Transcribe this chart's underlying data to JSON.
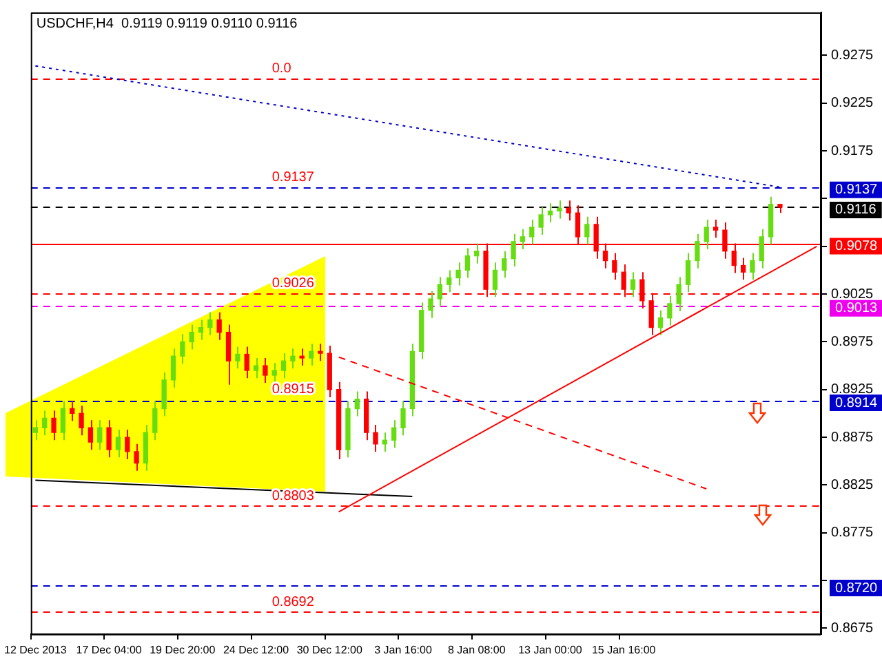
{
  "chart_data": {
    "type": "candlestick",
    "title": "USDCHF,H4  0.9119 0.9119 0.9110 0.9116",
    "categories": [
      "12 Dec 2013",
      null,
      null,
      null,
      null,
      null,
      null,
      null,
      "17 Dec 04:00",
      null,
      null,
      null,
      null,
      null,
      null,
      null,
      "19 Dec 20:00",
      null,
      null,
      null,
      null,
      null,
      null,
      null,
      "24 Dec 12:00",
      null,
      null,
      null,
      null,
      null,
      null,
      null,
      "30 Dec 12:00",
      null,
      null,
      null,
      null,
      null,
      null,
      null,
      "3 Jan 16:00",
      null,
      null,
      null,
      null,
      null,
      null,
      null,
      "8 Jan 08:00",
      null,
      null,
      null,
      null,
      null,
      null,
      null,
      "13 Jan 00:00",
      null,
      null,
      null,
      null,
      null,
      null,
      null,
      "15 Jan 16:00",
      null,
      null,
      null,
      null,
      null,
      null,
      null,
      null,
      null,
      null,
      null,
      null,
      null,
      null,
      null,
      null,
      null,
      null,
      null,
      null,
      null
    ],
    "ohlc": [
      [
        0.888,
        0.8893,
        0.8872,
        0.8885
      ],
      [
        0.8885,
        0.8903,
        0.8877,
        0.8895
      ],
      [
        0.8895,
        0.8903,
        0.8872,
        0.888
      ],
      [
        0.888,
        0.8913,
        0.8872,
        0.8905
      ],
      [
        0.8905,
        0.8913,
        0.8892,
        0.89
      ],
      [
        0.89,
        0.8908,
        0.8877,
        0.8885
      ],
      [
        0.8885,
        0.8893,
        0.8862,
        0.887
      ],
      [
        0.887,
        0.8893,
        0.8862,
        0.8885
      ],
      [
        0.8885,
        0.8893,
        0.8854,
        0.8862
      ],
      [
        0.8862,
        0.8883,
        0.8854,
        0.8875
      ],
      [
        0.8875,
        0.8883,
        0.8852,
        0.886
      ],
      [
        0.886,
        0.8868,
        0.884,
        0.8848
      ],
      [
        0.8848,
        0.8888,
        0.884,
        0.888
      ],
      [
        0.888,
        0.8913,
        0.8872,
        0.8905
      ],
      [
        0.8905,
        0.8943,
        0.8897,
        0.8935
      ],
      [
        0.8935,
        0.8968,
        0.8927,
        0.896
      ],
      [
        0.896,
        0.8983,
        0.8952,
        0.8975
      ],
      [
        0.8975,
        0.8993,
        0.8967,
        0.8985
      ],
      [
        0.8985,
        0.8998,
        0.8977,
        0.899
      ],
      [
        0.899,
        0.9006,
        0.8982,
        0.8998
      ],
      [
        0.8998,
        0.9006,
        0.8977,
        0.8985
      ],
      [
        0.8985,
        0.8993,
        0.893,
        0.8955
      ],
      [
        0.8955,
        0.897,
        0.8947,
        0.8962
      ],
      [
        0.8962,
        0.897,
        0.8937,
        0.8945
      ],
      [
        0.8945,
        0.8958,
        0.8937,
        0.895
      ],
      [
        0.895,
        0.8958,
        0.8932,
        0.894
      ],
      [
        0.894,
        0.8953,
        0.8932,
        0.8945
      ],
      [
        0.8945,
        0.8963,
        0.8937,
        0.8955
      ],
      [
        0.8955,
        0.8968,
        0.8947,
        0.896
      ],
      [
        0.896,
        0.8968,
        0.895,
        0.8958
      ],
      [
        0.8958,
        0.8973,
        0.895,
        0.8965
      ],
      [
        0.8965,
        0.8973,
        0.8955,
        0.8963
      ],
      [
        0.8963,
        0.8971,
        0.8917,
        0.8925
      ],
      [
        0.8925,
        0.8933,
        0.8852,
        0.8862
      ],
      [
        0.8862,
        0.8913,
        0.8854,
        0.8905
      ],
      [
        0.8905,
        0.8923,
        0.8897,
        0.8915
      ],
      [
        0.8915,
        0.8923,
        0.8872,
        0.888
      ],
      [
        0.888,
        0.8888,
        0.886,
        0.8868
      ],
      [
        0.8868,
        0.888,
        0.886,
        0.8872
      ],
      [
        0.8872,
        0.8893,
        0.8864,
        0.8885
      ],
      [
        0.8885,
        0.8913,
        0.8877,
        0.8905
      ],
      [
        0.8905,
        0.8973,
        0.8897,
        0.8965
      ],
      [
        0.8965,
        0.9016,
        0.8957,
        0.9008
      ],
      [
        0.9008,
        0.9028,
        0.9,
        0.902
      ],
      [
        0.902,
        0.9043,
        0.9012,
        0.9035
      ],
      [
        0.9035,
        0.905,
        0.9027,
        0.9042
      ],
      [
        0.9042,
        0.9058,
        0.9034,
        0.905
      ],
      [
        0.905,
        0.9073,
        0.9042,
        0.9065
      ],
      [
        0.9065,
        0.9078,
        0.9057,
        0.907
      ],
      [
        0.907,
        0.9078,
        0.9022,
        0.903
      ],
      [
        0.903,
        0.9058,
        0.9022,
        0.905
      ],
      [
        0.905,
        0.907,
        0.9042,
        0.9062
      ],
      [
        0.9062,
        0.9088,
        0.9054,
        0.908
      ],
      [
        0.908,
        0.9093,
        0.9072,
        0.9085
      ],
      [
        0.9085,
        0.9103,
        0.9077,
        0.9095
      ],
      [
        0.9095,
        0.9116,
        0.9087,
        0.9108
      ],
      [
        0.9108,
        0.912,
        0.91,
        0.9112
      ],
      [
        0.9112,
        0.9123,
        0.9104,
        0.9115
      ],
      [
        0.9115,
        0.9123,
        0.9102,
        0.911
      ],
      [
        0.911,
        0.9118,
        0.9077,
        0.9085
      ],
      [
        0.9085,
        0.9106,
        0.9077,
        0.9098
      ],
      [
        0.9098,
        0.9106,
        0.9062,
        0.907
      ],
      [
        0.907,
        0.9078,
        0.9052,
        0.906
      ],
      [
        0.906,
        0.9068,
        0.904,
        0.9048
      ],
      [
        0.9048,
        0.9056,
        0.9022,
        0.903
      ],
      [
        0.903,
        0.9048,
        0.9022,
        0.904
      ],
      [
        0.904,
        0.9048,
        0.901,
        0.9018
      ],
      [
        0.9018,
        0.9026,
        0.8982,
        0.899
      ],
      [
        0.899,
        0.9008,
        0.8982,
        0.9
      ],
      [
        0.9,
        0.9023,
        0.8992,
        0.9015
      ],
      [
        0.9015,
        0.9043,
        0.9007,
        0.9035
      ],
      [
        0.9035,
        0.9068,
        0.9027,
        0.906
      ],
      [
        0.906,
        0.9088,
        0.9052,
        0.908
      ],
      [
        0.908,
        0.9103,
        0.9072,
        0.9095
      ],
      [
        0.9095,
        0.9103,
        0.9084,
        0.9092
      ],
      [
        0.9092,
        0.91,
        0.9062,
        0.907
      ],
      [
        0.907,
        0.9078,
        0.9047,
        0.9055
      ],
      [
        0.9055,
        0.9063,
        0.904,
        0.9048
      ],
      [
        0.9048,
        0.9068,
        0.904,
        0.906
      ],
      [
        0.906,
        0.9093,
        0.9052,
        0.9085
      ],
      [
        0.9085,
        0.9127,
        0.9077,
        0.9119
      ],
      [
        0.9119,
        0.9119,
        0.911,
        0.9116
      ],
      null,
      null,
      null,
      null
    ],
    "colors": [
      "#66dd11",
      "#66dd11",
      "#ff0000",
      "#66dd11",
      "#ff0000",
      "#ff0000",
      "#ff0000",
      "#66dd11",
      "#ff0000",
      "#66dd11",
      "#ff0000",
      "#ff0000",
      "#66dd11",
      "#66dd11",
      "#66dd11",
      "#66dd11",
      "#66dd11",
      "#66dd11",
      "#66dd11",
      "#66dd11",
      "#ff0000",
      "#ff0000",
      "#66dd11",
      "#ff0000",
      "#66dd11",
      "#ff0000",
      "#66dd11",
      "#66dd11",
      "#66dd11",
      "#ff0000",
      "#66dd11",
      "#ff0000",
      "#ff0000",
      "#ff0000",
      "#66dd11",
      "#66dd11",
      "#ff0000",
      "#ff0000",
      "#66dd11",
      "#66dd11",
      "#66dd11",
      "#66dd11",
      "#66dd11",
      "#66dd11",
      "#66dd11",
      "#66dd11",
      "#66dd11",
      "#66dd11",
      "#66dd11",
      "#ff0000",
      "#66dd11",
      "#66dd11",
      "#66dd11",
      "#66dd11",
      "#66dd11",
      "#66dd11",
      "#66dd11",
      "#66dd11",
      "#ff0000",
      "#ff0000",
      "#66dd11",
      "#ff0000",
      "#ff0000",
      "#ff0000",
      "#ff0000",
      "#66dd11",
      "#ff0000",
      "#ff0000",
      "#66dd11",
      "#66dd11",
      "#66dd11",
      "#66dd11",
      "#66dd11",
      "#66dd11",
      "#ff0000",
      "#ff0000",
      "#ff0000",
      "#ff0000",
      "#66dd11",
      "#66dd11",
      "#66dd11",
      "#ff0000",
      null,
      null,
      null,
      null
    ],
    "series": [
      {
        "type": "line",
        "color": "#ff0000",
        "line_style": "solid",
        "values": [
          null,
          null,
          null,
          null,
          null,
          null,
          null,
          null,
          null,
          null,
          null,
          null,
          null,
          null,
          null,
          null,
          null,
          null,
          null,
          null,
          null,
          null,
          null,
          null,
          null,
          null,
          null,
          null,
          null,
          null,
          null,
          null,
          null,
          0.8797,
          null,
          null,
          null,
          null,
          null,
          null,
          null,
          null,
          null,
          null,
          null,
          null,
          null,
          null,
          null,
          null,
          null,
          null,
          null,
          null,
          null,
          null,
          null,
          null,
          null,
          null,
          null,
          null,
          null,
          null,
          null,
          null,
          null,
          null,
          null,
          null,
          null,
          null,
          null,
          null,
          null,
          null,
          null,
          null,
          null,
          null,
          null,
          null,
          null,
          null,
          null,
          0.9075
        ]
      },
      {
        "type": "line",
        "color": "#0000cc",
        "line_style": "dotted",
        "values": [
          0.9264,
          null,
          null,
          null,
          null,
          null,
          null,
          null,
          null,
          null,
          null,
          null,
          null,
          null,
          null,
          null,
          null,
          null,
          null,
          null,
          null,
          null,
          null,
          null,
          null,
          null,
          null,
          null,
          null,
          null,
          null,
          null,
          null,
          null,
          null,
          null,
          null,
          null,
          null,
          null,
          null,
          null,
          null,
          null,
          null,
          null,
          null,
          null,
          null,
          null,
          null,
          null,
          null,
          null,
          null,
          null,
          null,
          null,
          null,
          null,
          null,
          null,
          null,
          null,
          null,
          null,
          null,
          null,
          null,
          null,
          null,
          null,
          null,
          null,
          null,
          null,
          null,
          null,
          null,
          null,
          null,
          0.9137,
          null,
          null,
          null,
          null
        ]
      },
      {
        "type": "line",
        "color": "#000000",
        "line_style": "solid",
        "values": [
          0.883,
          null,
          null,
          null,
          null,
          null,
          null,
          null,
          null,
          null,
          null,
          null,
          null,
          null,
          null,
          null,
          null,
          null,
          null,
          null,
          null,
          null,
          null,
          null,
          null,
          null,
          null,
          null,
          null,
          null,
          null,
          null,
          null,
          null,
          null,
          null,
          null,
          null,
          null,
          null,
          null,
          0.8813,
          null,
          null,
          null,
          null,
          null,
          null,
          null,
          null,
          null,
          null,
          null,
          null,
          null,
          null,
          null,
          null,
          null,
          null,
          null,
          null,
          null,
          null,
          null,
          null,
          null,
          null,
          null,
          null,
          null,
          null,
          null,
          null,
          null,
          null,
          null,
          null,
          null,
          null,
          null,
          null,
          null,
          null,
          null,
          null
        ]
      },
      {
        "type": "line",
        "color": "#ff0000",
        "line_style": "dashed",
        "values": [
          null,
          null,
          null,
          null,
          null,
          null,
          null,
          null,
          null,
          null,
          null,
          null,
          null,
          null,
          null,
          null,
          null,
          null,
          null,
          null,
          null,
          null,
          null,
          null,
          null,
          null,
          null,
          null,
          null,
          null,
          null,
          null,
          null,
          0.8959,
          null,
          null,
          null,
          null,
          null,
          null,
          null,
          null,
          null,
          null,
          null,
          null,
          null,
          null,
          null,
          null,
          null,
          null,
          null,
          null,
          null,
          null,
          null,
          null,
          null,
          null,
          null,
          null,
          null,
          null,
          null,
          null,
          null,
          null,
          null,
          null,
          null,
          null,
          null,
          0.8821,
          null,
          null,
          null,
          null,
          null,
          null,
          null,
          null,
          null,
          null,
          null,
          null
        ]
      }
    ],
    "ylim": [
      0.8669,
      0.932
    ],
    "yticks": [
      0.9275,
      0.9225,
      0.9175,
      {
        "value": 0.9125,
        "label": null
      },
      {
        "value": 0.9075,
        "label": null
      },
      0.9025,
      0.8975,
      0.8925,
      0.8875,
      0.8825,
      0.8775,
      {
        "value": 0.8725,
        "label": null
      },
      0.8675
    ],
    "ref_lines": [
      {
        "axis": "y",
        "value": 0.9137,
        "label": "0.9137",
        "color": "#0000cc",
        "line_style": "dashed"
      },
      {
        "axis": "y",
        "value": 0.9116,
        "label": "0.9116",
        "color": "#000000",
        "line_style": "dashed"
      },
      {
        "axis": "y",
        "value": 0.9078,
        "label": "0.9078",
        "color": "#ff0000",
        "line_style": "solid"
      },
      {
        "axis": "y",
        "value": 0.9013,
        "label": "0.9013",
        "color": "#ee00ee",
        "line_style": "dashed"
      },
      {
        "axis": "y",
        "value": 0.8914,
        "label": "0.8914",
        "color": "#0000cc",
        "line_style": "dashed"
      },
      {
        "axis": "y",
        "value": 0.872,
        "label": "0.8720",
        "color": "#0000cc",
        "line_style": "dashed"
      },
      {
        "axis": "y",
        "value": 0.9251,
        "color": "#ff0000",
        "line_style": "dashed"
      },
      {
        "axis": "y",
        "value": 0.9026,
        "color": "#ff0000",
        "line_style": "dashed"
      },
      {
        "axis": "y",
        "value": 0.8803,
        "color": "#ff0000",
        "line_style": "dashed"
      },
      {
        "axis": "y",
        "value": 0.8692,
        "color": "#ff0000",
        "line_style": "dashed"
      }
    ],
    "annotations": [
      {
        "text": "0.0",
        "y": 0.9251
      },
      {
        "text": "0.9137",
        "y": 0.9137
      },
      {
        "text": "0.9026",
        "y": 0.9026
      },
      {
        "text": "0.8915",
        "y": 0.8915
      },
      {
        "text": "0.8803",
        "y": 0.8803
      },
      {
        "text": "0.8692",
        "y": 0.8692
      }
    ],
    "grid": false,
    "legend": false
  }
}
